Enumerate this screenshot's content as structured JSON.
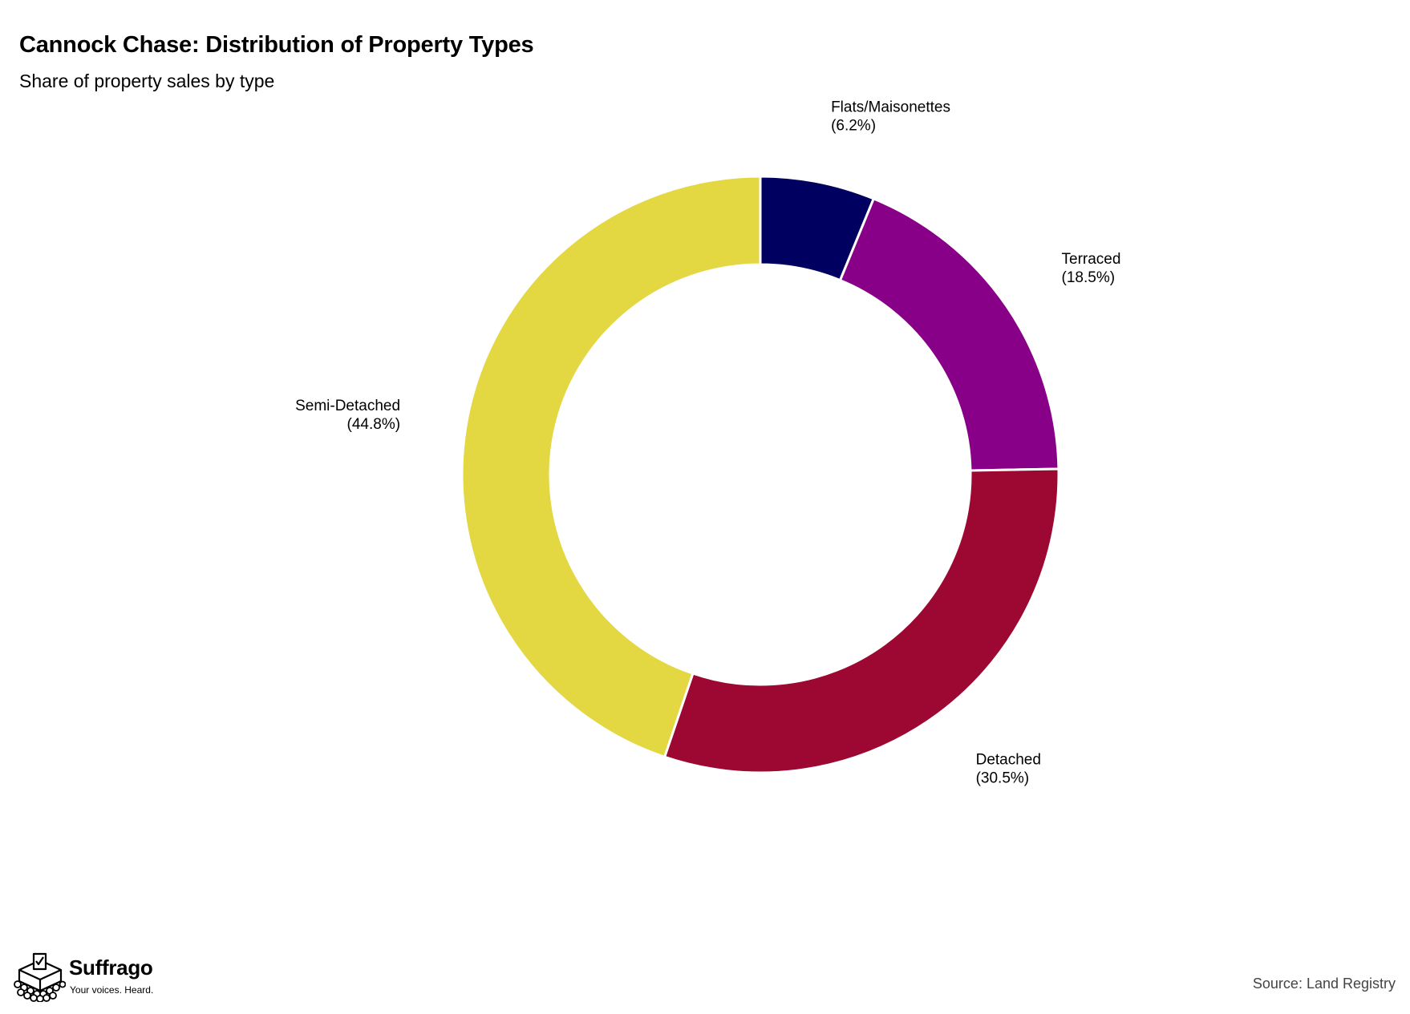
{
  "chart_data": {
    "type": "pie",
    "title": "Cannock Chase: Distribution of Property Types",
    "subtitle": "Share of property sales by type",
    "donut": true,
    "slices": [
      {
        "label": "Flats/Maisonettes",
        "value": 6.2,
        "display": "(6.2%)",
        "color": "#000060"
      },
      {
        "label": "Terraced",
        "value": 18.5,
        "display": "(18.5%)",
        "color": "#880088"
      },
      {
        "label": "Detached",
        "value": 30.5,
        "display": "(30.5%)",
        "color": "#9C0832"
      },
      {
        "label": "Semi-Detached",
        "value": 44.8,
        "display": "(44.8%)",
        "color": "#E3D742"
      }
    ]
  },
  "brand": {
    "name": "Suffrago",
    "tagline": "Your voices. Heard."
  },
  "source": "Source: Land Registry"
}
